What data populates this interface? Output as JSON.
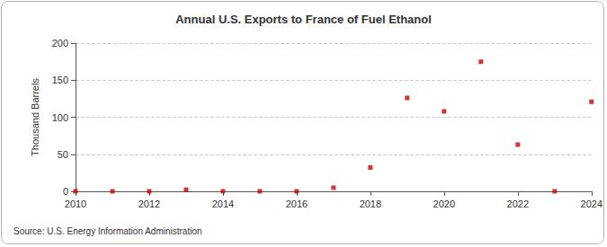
{
  "chart_data": {
    "type": "scatter",
    "title": "Annual U.S. Exports to France of Fuel Ethanol",
    "y_label": "Thousand Barrels",
    "source": "Source: U.S. Energy Information Administration",
    "x": [
      2010,
      2011,
      2012,
      2013,
      2014,
      2015,
      2016,
      2017,
      2018,
      2019,
      2020,
      2021,
      2022,
      2023,
      2024
    ],
    "values": [
      0,
      0,
      0,
      2,
      0,
      0,
      0,
      5,
      32,
      126,
      108,
      175,
      63,
      0,
      121
    ],
    "color": "#cc0000",
    "marker": "square",
    "xlim": [
      2010,
      2024
    ],
    "xticks": [
      2010,
      2012,
      2014,
      2016,
      2018,
      2020,
      2022,
      2024
    ],
    "ylim": [
      0,
      200
    ],
    "yticks": [
      0,
      50,
      100,
      150,
      200
    ],
    "grid": true
  }
}
